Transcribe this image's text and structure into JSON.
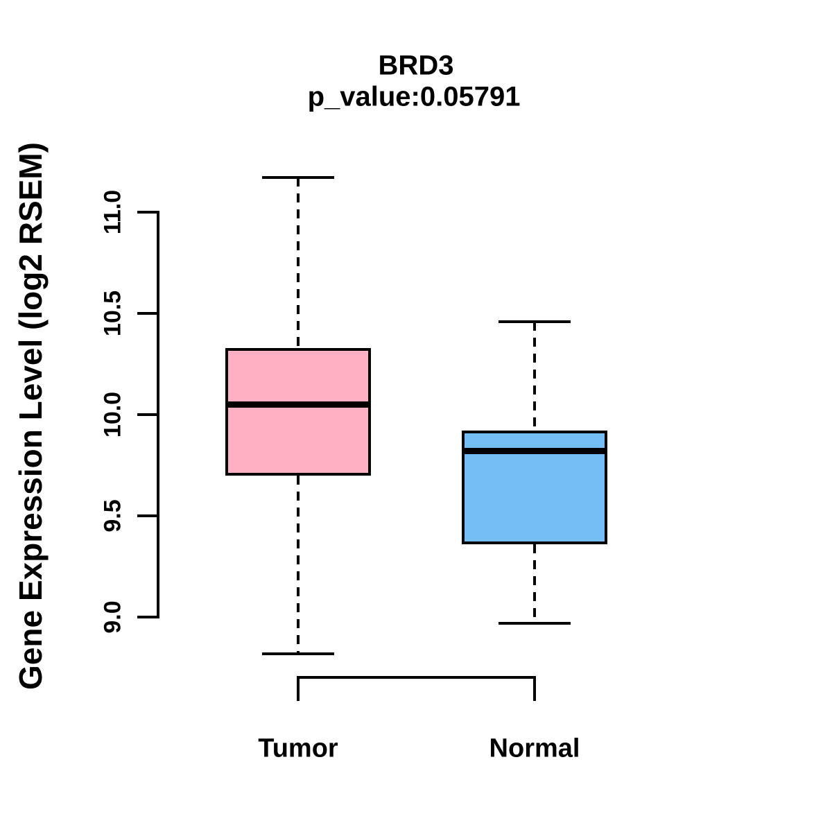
{
  "header": {
    "title": "BRD3",
    "subtitle": "p_value:0.05791"
  },
  "y_axis": {
    "label": "Gene Expression Level (log2 RSEM)",
    "tick_labels": [
      "9.0",
      "9.5",
      "10.0",
      "10.5",
      "11.0"
    ]
  },
  "chart_data": {
    "type": "boxplot",
    "title": "BRD3",
    "subtitle": "p_value:0.05791",
    "p_value": 0.05791,
    "gene": "BRD3",
    "ylabel": "Gene Expression Level (log2 RSEM)",
    "xlabel": "",
    "axis_tick_range": [
      9.0,
      11.0
    ],
    "yticks": [
      9.0,
      9.5,
      10.0,
      10.5,
      11.0
    ],
    "ytick_labels": [
      "9.0",
      "9.5",
      "10.0",
      "10.5",
      "11.0"
    ],
    "grid": "off",
    "legend": "none",
    "categories": [
      "Tumor",
      "Normal"
    ],
    "series": [
      {
        "name": "Tumor",
        "whisker_low": 8.82,
        "q1": 9.7,
        "median": 10.05,
        "q3": 10.33,
        "whisker_high": 11.17,
        "fill": "#FFB1C3",
        "stroke": "#000000",
        "whisker_style": "dashed"
      },
      {
        "name": "Normal",
        "whisker_low": 8.97,
        "q1": 9.36,
        "median": 9.82,
        "q3": 9.92,
        "whisker_high": 10.46,
        "fill": "#75BEF5",
        "stroke": "#000000",
        "whisker_style": "dashed"
      }
    ],
    "colors": {
      "tumor_fill": "#FFB1C3",
      "normal_fill": "#75BEF5",
      "line": "#000000"
    }
  }
}
